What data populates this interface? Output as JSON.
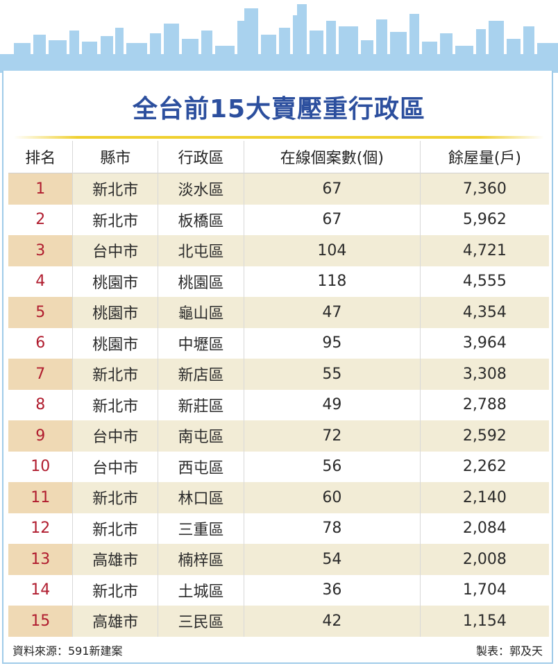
{
  "title": "全台前15大賣壓重行政區",
  "headers": [
    "排名",
    "縣市",
    "行政區",
    "在線個案數(個)",
    "餘屋量(戶)"
  ],
  "rows": [
    {
      "rank": "1",
      "city": "新北市",
      "district": "淡水區",
      "listings": "67",
      "inventory": "7,360"
    },
    {
      "rank": "2",
      "city": "新北市",
      "district": "板橋區",
      "listings": "67",
      "inventory": "5,962"
    },
    {
      "rank": "3",
      "city": "台中市",
      "district": "北屯區",
      "listings": "104",
      "inventory": "4,721"
    },
    {
      "rank": "4",
      "city": "桃園市",
      "district": "桃園區",
      "listings": "118",
      "inventory": "4,555"
    },
    {
      "rank": "5",
      "city": "桃園市",
      "district": "龜山區",
      "listings": "47",
      "inventory": "4,354"
    },
    {
      "rank": "6",
      "city": "桃園市",
      "district": "中壢區",
      "listings": "95",
      "inventory": "3,964"
    },
    {
      "rank": "7",
      "city": "新北市",
      "district": "新店區",
      "listings": "55",
      "inventory": "3,308"
    },
    {
      "rank": "8",
      "city": "新北市",
      "district": "新莊區",
      "listings": "49",
      "inventory": "2,788"
    },
    {
      "rank": "9",
      "city": "台中市",
      "district": "南屯區",
      "listings": "72",
      "inventory": "2,592"
    },
    {
      "rank": "10",
      "city": "台中市",
      "district": "西屯區",
      "listings": "56",
      "inventory": "2,262"
    },
    {
      "rank": "11",
      "city": "新北市",
      "district": "林口區",
      "listings": "60",
      "inventory": "2,140"
    },
    {
      "rank": "12",
      "city": "新北市",
      "district": "三重區",
      "listings": "78",
      "inventory": "2,084"
    },
    {
      "rank": "13",
      "city": "高雄市",
      "district": "楠梓區",
      "listings": "54",
      "inventory": "2,008"
    },
    {
      "rank": "14",
      "city": "新北市",
      "district": "土城區",
      "listings": "36",
      "inventory": "1,704"
    },
    {
      "rank": "15",
      "city": "高雄市",
      "district": "三民區",
      "listings": "42",
      "inventory": "1,154"
    }
  ],
  "footer": {
    "source": "資料來源：591新建案",
    "credit": "製表：郭及天"
  },
  "colors": {
    "title": "#2c4f9e",
    "rank": "#b01c2e",
    "skyline": "#a9d2ee",
    "stripe": "#f2ecd6",
    "rule": "#f0d030"
  }
}
